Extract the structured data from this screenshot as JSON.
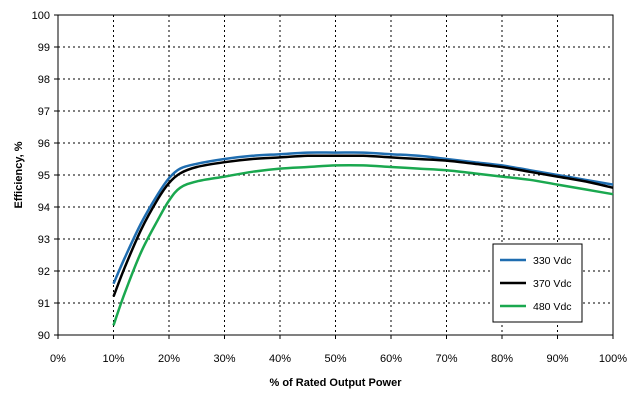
{
  "chart_data": {
    "type": "line",
    "title": "",
    "xlabel": "% of Rated Output Power",
    "ylabel": "Efficiency, %",
    "xlim": [
      0,
      100
    ],
    "ylim": [
      90,
      100
    ],
    "x_ticks": [
      0,
      10,
      20,
      30,
      40,
      50,
      60,
      70,
      80,
      90,
      100
    ],
    "x_tick_labels": [
      "0%",
      "10%",
      "20%",
      "30%",
      "40%",
      "50%",
      "60%",
      "70%",
      "80%",
      "90%",
      "100%"
    ],
    "y_ticks": [
      90,
      91,
      92,
      93,
      94,
      95,
      96,
      97,
      98,
      99,
      100
    ],
    "y_tick_labels": [
      "90",
      "91",
      "92",
      "93",
      "94",
      "95",
      "96",
      "97",
      "98",
      "99",
      "100"
    ],
    "grid": true,
    "legend_position": "bottom-right",
    "series": [
      {
        "name": "330 Vdc",
        "color": "#1f6db0",
        "x": [
          10,
          12,
          15,
          18,
          20,
          22,
          25,
          30,
          35,
          40,
          45,
          50,
          55,
          60,
          65,
          70,
          75,
          80,
          85,
          90,
          95,
          100
        ],
        "y": [
          91.6,
          92.4,
          93.5,
          94.4,
          94.9,
          95.2,
          95.35,
          95.5,
          95.6,
          95.65,
          95.7,
          95.7,
          95.7,
          95.65,
          95.6,
          95.5,
          95.4,
          95.3,
          95.15,
          95.0,
          94.85,
          94.7
        ]
      },
      {
        "name": "370 Vdc",
        "color": "#000000",
        "x": [
          10,
          12,
          15,
          18,
          20,
          22,
          25,
          30,
          35,
          40,
          45,
          50,
          55,
          60,
          65,
          70,
          75,
          80,
          85,
          90,
          95,
          100
        ],
        "y": [
          91.2,
          92.1,
          93.3,
          94.25,
          94.75,
          95.05,
          95.25,
          95.4,
          95.5,
          95.55,
          95.6,
          95.6,
          95.6,
          95.55,
          95.5,
          95.45,
          95.35,
          95.25,
          95.1,
          94.95,
          94.8,
          94.6
        ]
      },
      {
        "name": "480 Vdc",
        "color": "#1aa84f",
        "x": [
          10,
          12,
          15,
          18,
          20,
          22,
          25,
          30,
          35,
          40,
          45,
          50,
          55,
          60,
          65,
          70,
          75,
          80,
          85,
          90,
          95,
          100
        ],
        "y": [
          90.3,
          91.3,
          92.6,
          93.6,
          94.2,
          94.6,
          94.8,
          94.95,
          95.1,
          95.2,
          95.25,
          95.3,
          95.3,
          95.25,
          95.2,
          95.15,
          95.05,
          94.95,
          94.85,
          94.7,
          94.55,
          94.4
        ]
      }
    ]
  }
}
